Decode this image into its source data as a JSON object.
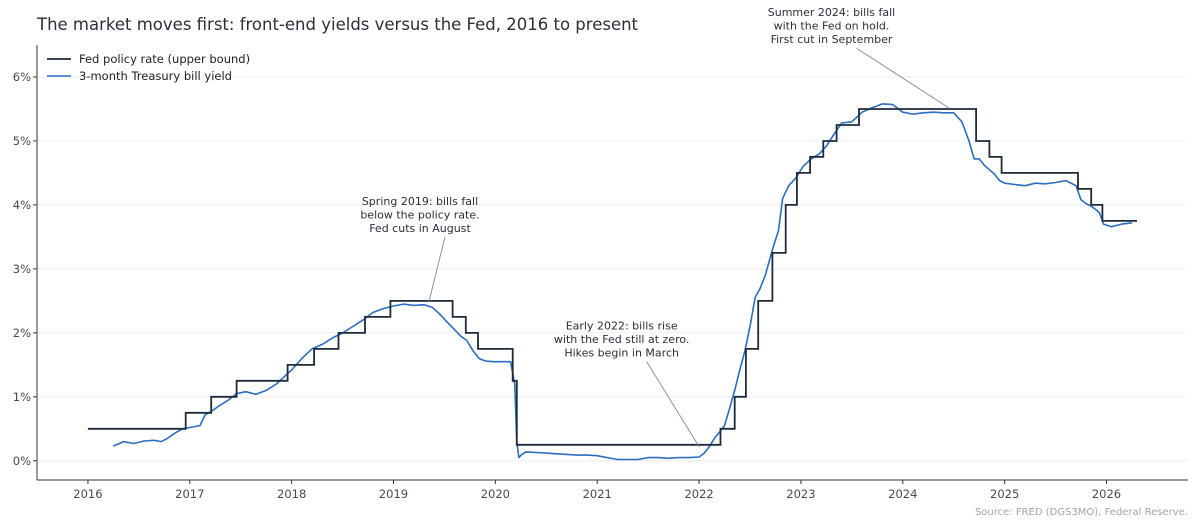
{
  "chart_data": {
    "type": "line",
    "title": "The market moves first: front-end yields versus the Fed, 2016 to present",
    "source": "Source: FRED (DGS3MO), Federal Reserve.",
    "xlim": [
      2015.5,
      2026.8
    ],
    "ylim": [
      -0.3,
      6.5
    ],
    "x_ticks": [
      2016,
      2017,
      2018,
      2019,
      2020,
      2021,
      2022,
      2023,
      2024,
      2025,
      2026
    ],
    "y_ticks": [
      {
        "value": 0,
        "label": "0%"
      },
      {
        "value": 1,
        "label": "1%"
      },
      {
        "value": 2,
        "label": "2%"
      },
      {
        "value": 3,
        "label": "3%"
      },
      {
        "value": 4,
        "label": "4%"
      },
      {
        "value": 5,
        "label": "5%"
      },
      {
        "value": 6,
        "label": "6%"
      }
    ],
    "grid": "horizontal",
    "legend_position": "top-left",
    "colors": {
      "fed": "#1f2a3a",
      "tbill": "#2a6ebf",
      "grid": "#ececec",
      "axis": "#333333",
      "leader": "#888888"
    },
    "series": [
      {
        "name": "Fed policy rate (upper bound)",
        "kind": "step",
        "x": [
          2016.0,
          2016.96,
          2017.21,
          2017.46,
          2017.96,
          2018.22,
          2018.46,
          2018.72,
          2018.97,
          2019.58,
          2019.71,
          2019.83,
          2020.17,
          2020.21,
          2022.21,
          2022.35,
          2022.46,
          2022.58,
          2022.72,
          2022.85,
          2022.96,
          2023.09,
          2023.22,
          2023.35,
          2023.57,
          2024.72,
          2024.85,
          2024.97,
          2025.72,
          2025.85,
          2025.96,
          2026.3
        ],
        "y": [
          0.5,
          0.75,
          1.0,
          1.25,
          1.5,
          1.75,
          2.0,
          2.25,
          2.5,
          2.25,
          2.0,
          1.75,
          1.25,
          0.25,
          0.5,
          1.0,
          1.75,
          2.5,
          3.25,
          4.0,
          4.5,
          4.75,
          5.0,
          5.25,
          5.5,
          5.0,
          4.75,
          4.5,
          4.25,
          4.0,
          3.75,
          3.75
        ]
      },
      {
        "name": "3-month Treasury bill yield",
        "kind": "line",
        "x": [
          2016.25,
          2016.35,
          2016.45,
          2016.55,
          2016.65,
          2016.72,
          2016.78,
          2016.85,
          2016.93,
          2017.0,
          2017.1,
          2017.15,
          2017.2,
          2017.28,
          2017.38,
          2017.46,
          2017.55,
          2017.65,
          2017.75,
          2017.85,
          2017.93,
          2018.0,
          2018.1,
          2018.2,
          2018.3,
          2018.4,
          2018.5,
          2018.6,
          2018.7,
          2018.8,
          2018.9,
          2019.0,
          2019.1,
          2019.2,
          2019.3,
          2019.38,
          2019.45,
          2019.52,
          2019.6,
          2019.66,
          2019.72,
          2019.78,
          2019.84,
          2019.9,
          2019.98,
          2020.08,
          2020.15,
          2020.19,
          2020.21,
          2020.23,
          2020.26,
          2020.3,
          2020.4,
          2020.5,
          2020.6,
          2020.7,
          2020.8,
          2020.9,
          2021.0,
          2021.1,
          2021.2,
          2021.3,
          2021.4,
          2021.5,
          2021.6,
          2021.7,
          2021.8,
          2021.9,
          2022.0,
          2022.05,
          2022.1,
          2022.15,
          2022.2,
          2022.25,
          2022.3,
          2022.35,
          2022.4,
          2022.45,
          2022.5,
          2022.55,
          2022.6,
          2022.65,
          2022.72,
          2022.78,
          2022.82,
          2022.88,
          2022.95,
          2023.02,
          2023.1,
          2023.18,
          2023.25,
          2023.33,
          2023.4,
          2023.5,
          2023.6,
          2023.7,
          2023.8,
          2023.9,
          2024.0,
          2024.1,
          2024.2,
          2024.3,
          2024.4,
          2024.5,
          2024.58,
          2024.65,
          2024.7,
          2024.75,
          2024.8,
          2024.85,
          2024.9,
          2024.95,
          2025.0,
          2025.1,
          2025.2,
          2025.3,
          2025.4,
          2025.5,
          2025.6,
          2025.7,
          2025.75,
          2025.8,
          2025.85,
          2025.9,
          2025.93,
          2025.97,
          2026.05,
          2026.15,
          2026.25
        ],
        "y": [
          0.23,
          0.3,
          0.27,
          0.31,
          0.32,
          0.3,
          0.35,
          0.43,
          0.5,
          0.52,
          0.55,
          0.72,
          0.76,
          0.85,
          0.95,
          1.05,
          1.08,
          1.04,
          1.1,
          1.2,
          1.32,
          1.42,
          1.6,
          1.75,
          1.82,
          1.92,
          2.0,
          2.1,
          2.2,
          2.32,
          2.38,
          2.42,
          2.45,
          2.43,
          2.44,
          2.4,
          2.3,
          2.18,
          2.05,
          1.95,
          1.88,
          1.72,
          1.6,
          1.56,
          1.55,
          1.55,
          1.55,
          1.2,
          0.3,
          0.05,
          0.1,
          0.14,
          0.13,
          0.12,
          0.11,
          0.1,
          0.09,
          0.09,
          0.08,
          0.05,
          0.02,
          0.02,
          0.02,
          0.05,
          0.05,
          0.04,
          0.05,
          0.05,
          0.06,
          0.12,
          0.22,
          0.35,
          0.45,
          0.55,
          0.82,
          1.1,
          1.42,
          1.72,
          2.1,
          2.55,
          2.7,
          2.9,
          3.3,
          3.6,
          4.1,
          4.3,
          4.42,
          4.6,
          4.72,
          4.8,
          4.92,
          5.12,
          5.28,
          5.3,
          5.45,
          5.52,
          5.58,
          5.57,
          5.45,
          5.42,
          5.44,
          5.45,
          5.44,
          5.44,
          5.3,
          5.0,
          4.72,
          4.72,
          4.62,
          4.55,
          4.48,
          4.38,
          4.34,
          4.32,
          4.3,
          4.34,
          4.33,
          4.35,
          4.38,
          4.3,
          4.08,
          4.02,
          3.98,
          3.92,
          3.88,
          3.7,
          3.66,
          3.7,
          3.72
        ]
      }
    ],
    "annotations": [
      {
        "lines": [
          "Spring 2019: bills fall",
          "below the policy rate.",
          "Fed cuts in August"
        ],
        "text_x": 2019.26,
        "text_y": 4.0,
        "point_x": 2019.35,
        "point_y": 2.5
      },
      {
        "lines": [
          "Early 2022: bills rise",
          "with the Fed still at zero.",
          "Hikes begin in March"
        ],
        "text_x": 2021.24,
        "text_y": 2.05,
        "point_x": 2022.0,
        "point_y": 0.22
      },
      {
        "lines": [
          "Summer 2024: bills fall",
          "with the Fed on hold.",
          "First cut in September"
        ],
        "text_x": 2023.3,
        "text_y": 6.95,
        "point_x": 2024.45,
        "point_y": 5.52
      }
    ]
  }
}
